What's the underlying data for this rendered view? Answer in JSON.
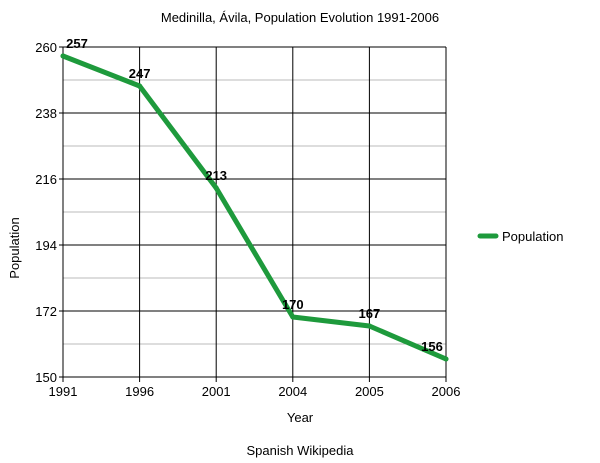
{
  "chart_data": {
    "type": "line",
    "title": "Medinilla, Ávila, Population Evolution 1991-2006",
    "xlabel": "Year",
    "ylabel": "Population",
    "caption": "Spanish Wikipedia",
    "categories": [
      "1991",
      "1996",
      "2001",
      "2004",
      "2005",
      "2006"
    ],
    "series": [
      {
        "name": "Population",
        "values": [
          257,
          247,
          213,
          170,
          167,
          156
        ],
        "color": "#1e9a3c"
      }
    ],
    "ylim": [
      150,
      260
    ],
    "yticks": [
      150,
      172,
      194,
      216,
      238,
      260
    ],
    "grid": true,
    "legend": "right"
  }
}
